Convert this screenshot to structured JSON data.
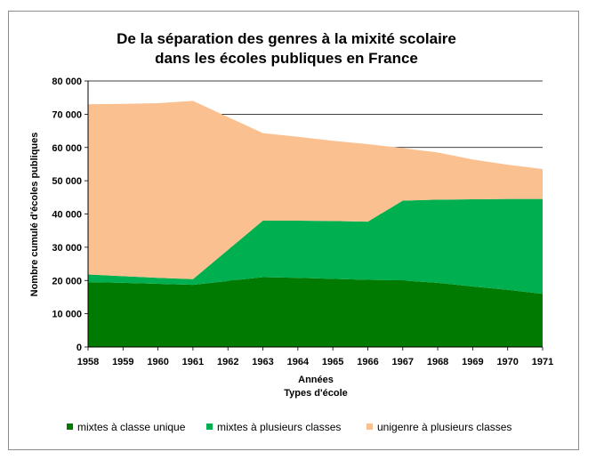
{
  "chart_data": {
    "type": "area",
    "stacked": true,
    "title_lines": [
      "De la séparation des genres à la mixité scolaire",
      "dans les écoles publiques en France"
    ],
    "xlabel": "Années",
    "xlabel2": "Types d'école",
    "ylabel": "Nombre cumulé d'écoles publiques",
    "x": [
      "1958",
      "1959",
      "1960",
      "1961",
      "1962",
      "1963",
      "1964",
      "1965",
      "1966",
      "1967",
      "1968",
      "1969",
      "1970",
      "1971"
    ],
    "ylim": [
      0,
      80000
    ],
    "yticks": [
      0,
      10000,
      20000,
      30000,
      40000,
      50000,
      60000,
      70000,
      80000
    ],
    "ytick_labels": [
      "0",
      "10 000",
      "20 000",
      "30 000",
      "40 000",
      "50 000",
      "60 000",
      "70 000",
      "80 000"
    ],
    "grid": true,
    "legend_position": "bottom",
    "series": [
      {
        "name": "mixtes à classe unique",
        "color": "#007a00",
        "values": [
          19500,
          19300,
          19000,
          18700,
          null,
          21000,
          20800,
          20500,
          20200,
          20000,
          19300,
          18200,
          17200,
          16000
        ]
      },
      {
        "name": "mixtes à plusieurs classes",
        "color": "#00b050",
        "values": [
          2300,
          2000,
          1800,
          1700,
          null,
          17000,
          17200,
          17400,
          17500,
          24000,
          25000,
          26200,
          27300,
          28500
        ]
      },
      {
        "name": "unigenre à plusieurs classes",
        "color": "#fac090",
        "values": [
          51200,
          51800,
          52500,
          53600,
          null,
          26300,
          25200,
          24100,
          23300,
          15800,
          14200,
          12000,
          10300,
          9000
        ]
      }
    ]
  }
}
